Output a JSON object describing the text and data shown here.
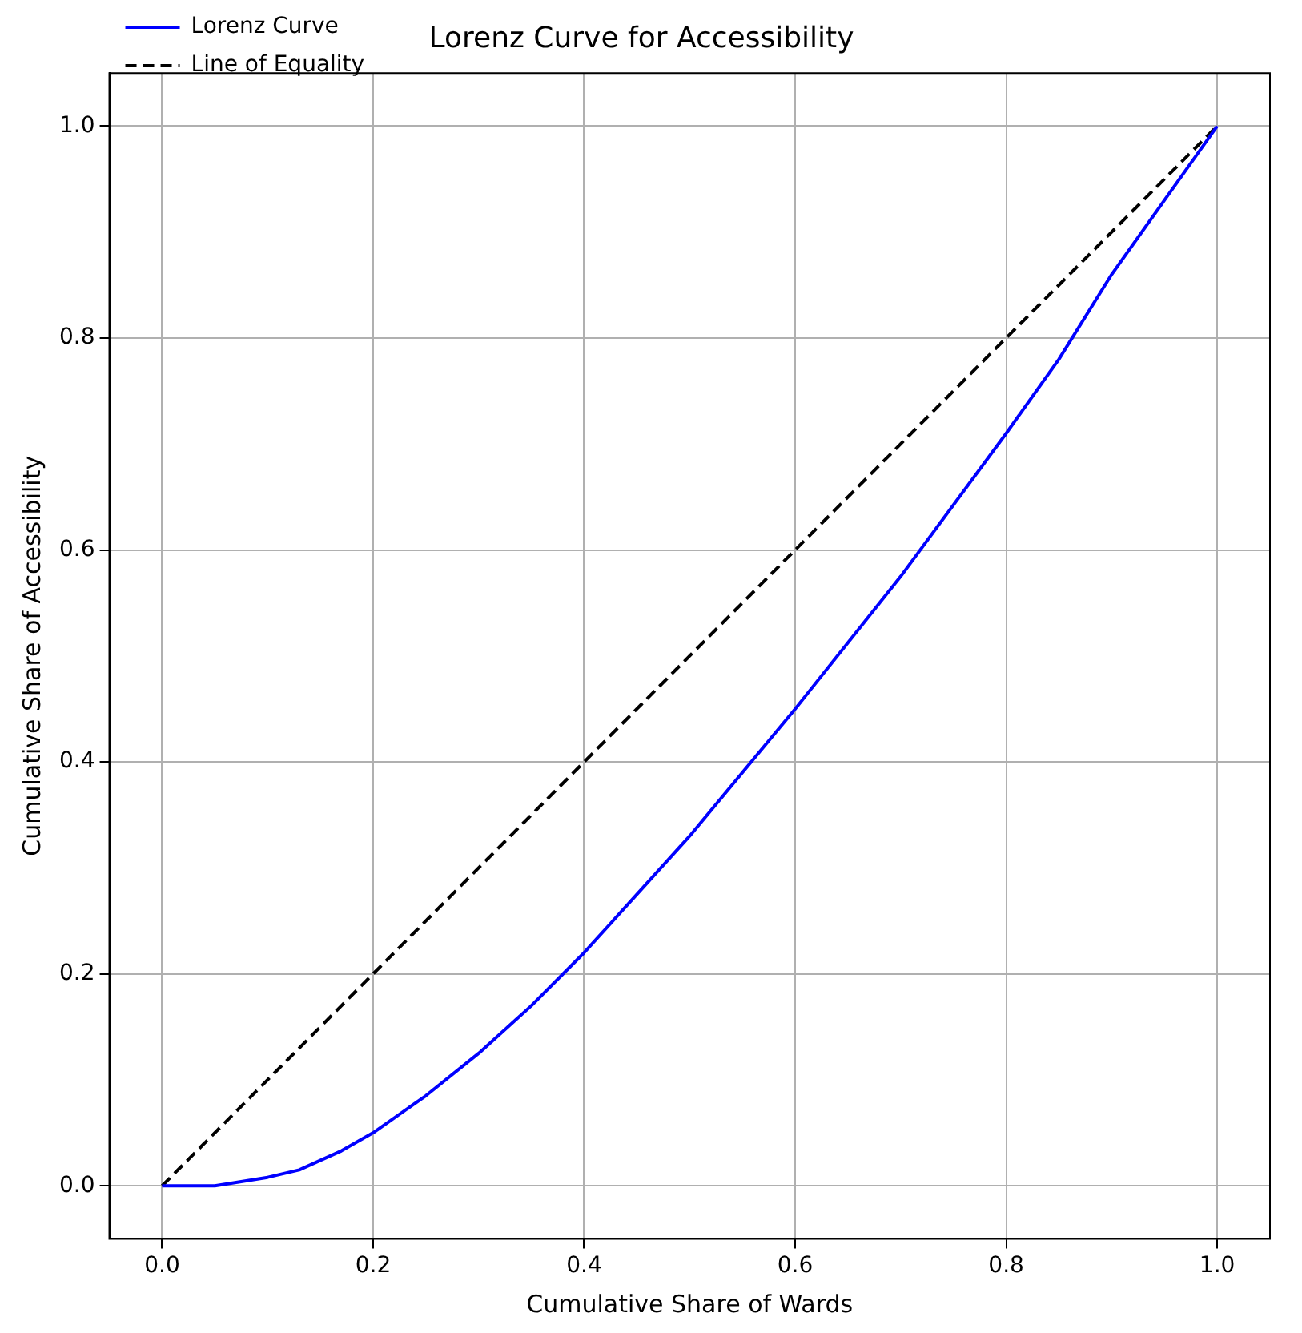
{
  "chart_data": {
    "type": "line",
    "title": "Lorenz Curve for Accessibility",
    "xlabel": "Cumulative Share of Wards",
    "ylabel": "Cumulative Share of Accessibility",
    "series": [
      {
        "name": "Lorenz Curve",
        "color": "#0000ff",
        "x": [
          0,
          0.05,
          0.1,
          0.13,
          0.17,
          0.2,
          0.25,
          0.3,
          0.35,
          0.4,
          0.5,
          0.6,
          0.7,
          0.8,
          0.85,
          0.9,
          0.95,
          1
        ],
        "values": [
          0,
          0,
          0.008,
          0.015,
          0.033,
          0.05,
          0.085,
          0.125,
          0.17,
          0.22,
          0.33,
          0.45,
          0.575,
          0.71,
          0.78,
          0.86,
          0.93,
          1
        ],
        "line_style": "solid"
      },
      {
        "name": "Line of Equality",
        "color": "#000000",
        "x": [
          0,
          1
        ],
        "values": [
          0,
          1
        ],
        "line_style": "dashed"
      }
    ],
    "xlim": [
      -0.05,
      1.05
    ],
    "ylim": [
      -0.05,
      1.05
    ],
    "xticks": [
      {
        "value": 0,
        "label": "0.0"
      },
      {
        "value": 0.2,
        "label": "0.2"
      },
      {
        "value": 0.4,
        "label": "0.4"
      },
      {
        "value": 0.6,
        "label": "0.6"
      },
      {
        "value": 0.8,
        "label": "0.8"
      },
      {
        "value": 1,
        "label": "1.0"
      }
    ],
    "yticks": [
      {
        "value": 0,
        "label": "0.0"
      },
      {
        "value": 0.2,
        "label": "0.2"
      },
      {
        "value": 0.4,
        "label": "0.4"
      },
      {
        "value": 0.6,
        "label": "0.6"
      },
      {
        "value": 0.8,
        "label": "0.8"
      },
      {
        "value": 1,
        "label": "1.0"
      }
    ],
    "grid": true,
    "legend": "top left",
    "marker": "none"
  }
}
